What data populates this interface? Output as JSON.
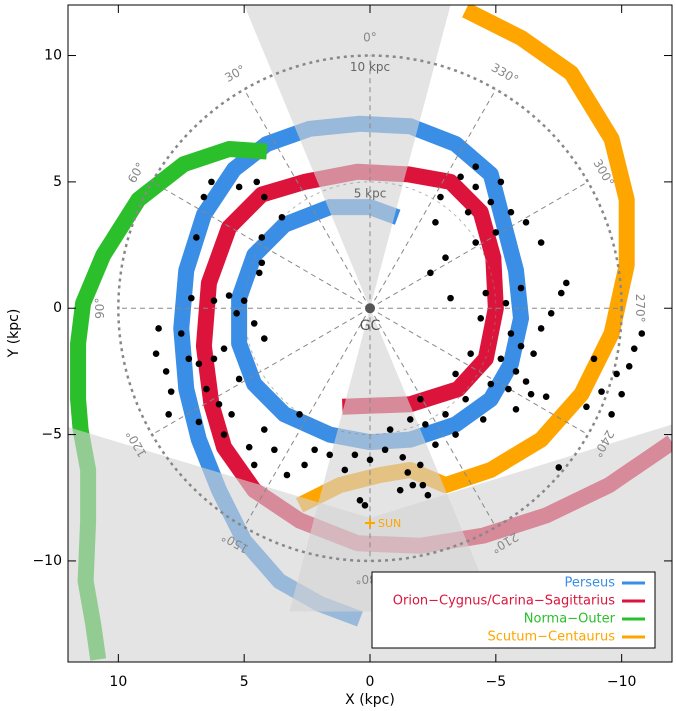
{
  "chart_data": {
    "type": "line",
    "x_label": "X (kpc)",
    "y_label": "Y (kpc)",
    "xlim": [
      12,
      -12
    ],
    "ylim": [
      -14,
      12
    ],
    "xticks": [
      10,
      5,
      0,
      {
        "value": -5,
        "label": "−5"
      },
      {
        "value": -10,
        "label": "−10"
      }
    ],
    "yticks": [
      10,
      5,
      0,
      {
        "value": -5,
        "label": "−5"
      },
      {
        "value": -10,
        "label": "−10"
      }
    ],
    "legend": "lower right",
    "series": [
      {
        "name": "Perseus",
        "color": "#3a8ee6",
        "x": [
          -1.1,
          0.0,
          1.6,
          3.4,
          4.6,
          5.2,
          5.2,
          4.6,
          3.4,
          1.6,
          0.0,
          -1.6,
          -3.4,
          -4.8,
          -5.6,
          -6.0,
          -5.8,
          -4.8,
          -3.4,
          -1.6,
          0.4,
          2.4,
          4.1,
          5.4,
          6.6,
          7.3,
          7.5,
          7.3,
          6.8,
          6.0,
          5.0,
          3.6,
          2.0,
          0.4
        ],
        "y": [
          3.6,
          4.0,
          4.0,
          3.3,
          2.1,
          0.4,
          -1.4,
          -3.0,
          -4.2,
          -5.0,
          -5.3,
          -5.2,
          -4.6,
          -3.6,
          -2.2,
          -0.4,
          1.5,
          5.3,
          6.5,
          7.2,
          7.3,
          7.1,
          6.5,
          5.5,
          3.7,
          1.5,
          -0.8,
          -3.2,
          -5.2,
          -7.2,
          -9.2,
          -10.8,
          -11.7,
          -12.3
        ]
      },
      {
        "name": "Orion−Cygnus/Carina−Sagittarius",
        "color": "#dc143c",
        "x": [
          1.1,
          -1.6,
          -3.5,
          -4.6,
          -5.0,
          -4.9,
          -4.4,
          -3.2,
          -1.5,
          0.5,
          2.6,
          4.3,
          5.6,
          6.4,
          6.6,
          6.3,
          5.8,
          4.6,
          2.8,
          0.5,
          -2.0,
          -4.5,
          -7.0,
          -9.5,
          -12.0
        ],
        "y": [
          -3.9,
          -3.8,
          -3.2,
          -2.0,
          0.0,
          2.0,
          3.8,
          5.0,
          5.3,
          5.4,
          5.0,
          4.5,
          3.2,
          1.0,
          -1.5,
          -3.8,
          -5.5,
          -7.2,
          -8.4,
          -9.3,
          -9.4,
          -9.0,
          -8.2,
          -7.0,
          -5.3
        ]
      },
      {
        "name": "Norma−Outer",
        "color": "#2bbf2b",
        "x": [
          4.1,
          5.6,
          7.4,
          9.2,
          10.6,
          11.4,
          11.6,
          11.6,
          11.5,
          11.2,
          11.2,
          11.3,
          11.0,
          10.8
        ],
        "y": [
          6.2,
          6.3,
          5.7,
          4.3,
          2.1,
          0.2,
          -1.4,
          -3.6,
          -4.8,
          -6.4,
          -8.4,
          -10.8,
          -12.5,
          -13.9
        ]
      },
      {
        "name": "Scutum−Centaurus",
        "color": "#ffa500",
        "x": [
          2.8,
          1.2,
          -0.4,
          -1.6,
          -3.0,
          -4.8,
          -6.8,
          -8.4,
          -9.6,
          -10.2,
          -10.2,
          -9.6,
          -8.0,
          -6.0,
          -3.8
        ],
        "y": [
          -7.8,
          -7.0,
          -6.6,
          -6.4,
          -7.0,
          -6.4,
          -5.2,
          -3.4,
          -1.0,
          1.7,
          4.3,
          6.7,
          9.3,
          10.7,
          11.8
        ]
      }
    ],
    "scatter": {
      "color": "#000000",
      "x": [
        4.5,
        5.2,
        4.2,
        3.5,
        4.3,
        4.3,
        4.4,
        5.0,
        5.6,
        6.2,
        7.1,
        5.3,
        4.6,
        4.2,
        5.8,
        6.2,
        6.8,
        7.2,
        8.4,
        8.5,
        8.1,
        7.9,
        8.0,
        6.5,
        6.0,
        5.5,
        5.8,
        4.8,
        4.6,
        4.2,
        3.8,
        6.9,
        6.6,
        6.3,
        2.8,
        2.2,
        2.6,
        1.6,
        3.3,
        5.2,
        7.5,
        6.8,
        0.6,
        0.0,
        -0.6,
        -1.3,
        -1.5,
        -1.7,
        -2.0,
        -2.3,
        -2.1,
        -1.2,
        -0.8,
        -1.6,
        0.4,
        0.2,
        -2.6,
        -3.4,
        -3.0,
        1.0,
        -4.2,
        -3.6,
        -4.8,
        -5.0,
        -4.2,
        -2.6,
        -3.0,
        -2.4,
        -4.6,
        -5.4,
        -5.6,
        -6.0,
        -5.2,
        -5.8,
        -6.2,
        -5.5,
        -4.8,
        -6.4,
        -5.8,
        -6.8,
        -7.2,
        -7.6,
        -7.8,
        -6.8,
        -6.2,
        -5.6,
        -4.0,
        -4.5,
        -3.8,
        -6.5,
        -6.0,
        -4.4,
        -3.2,
        -2.8,
        -4.2,
        -3.4,
        -5.2,
        -3.9,
        -8.6,
        -9.2,
        -9.6,
        -10.0,
        -10.5,
        -10.3,
        -9.8,
        -8.9,
        -10.8,
        -7.5,
        -7.0,
        -2.0,
        -2.2
      ],
      "y": [
        5.0,
        4.8,
        4.4,
        3.6,
        2.8,
        1.8,
        1.4,
        0.3,
        0.5,
        0.3,
        0.4,
        -0.2,
        -0.6,
        -1.2,
        -1.6,
        -2.0,
        -2.2,
        -2.0,
        -0.8,
        -1.8,
        -2.5,
        -3.3,
        -4.2,
        -3.2,
        -3.8,
        -4.2,
        -5.0,
        -5.5,
        -6.2,
        -4.8,
        -5.6,
        2.8,
        4.4,
        5.0,
        -4.2,
        -5.6,
        -6.2,
        -5.8,
        -6.6,
        -2.8,
        -1.0,
        -4.5,
        -5.8,
        -6.0,
        -5.6,
        -5.9,
        -6.5,
        -7.0,
        -6.2,
        -7.4,
        -7.0,
        -7.2,
        -4.8,
        -4.4,
        -7.6,
        -7.8,
        -5.4,
        -5.0,
        -4.2,
        -6.4,
        4.8,
        5.2,
        4.2,
        3.0,
        2.6,
        3.4,
        2.0,
        1.4,
        0.6,
        0.2,
        -1.0,
        -1.5,
        -2.0,
        -2.5,
        -2.9,
        -3.2,
        -3.0,
        -3.4,
        -4.0,
        -0.8,
        -0.2,
        0.6,
        1.0,
        2.6,
        3.4,
        3.8,
        -1.8,
        -4.4,
        -3.6,
        -1.8,
        0.8,
        -0.4,
        0.4,
        4.4,
        5.6,
        -2.6,
        5.0,
        3.8,
        -3.9,
        -3.3,
        -4.2,
        -3.4,
        -1.6,
        -2.3,
        -2.6,
        -2.0,
        -1.0,
        -6.3,
        -3.5,
        -3.6,
        -4.6
      ]
    },
    "shaded_regions": [
      [
        [
          5,
          12
        ],
        [
          -3.2,
          12
        ],
        [
          0,
          0
        ]
      ],
      [
        [
          0,
          0
        ],
        [
          3.2,
          -12
        ],
        [
          -5,
          -12
        ]
      ],
      [
        [
          12,
          -4.7
        ],
        [
          0,
          -8.3
        ],
        [
          -12,
          -4.6
        ],
        [
          -12,
          -14
        ],
        [
          12,
          -14
        ]
      ]
    ],
    "angle_ticks": [
      {
        "value": 0,
        "label": "0°"
      },
      {
        "value": 30,
        "label": "30°"
      },
      {
        "value": 60,
        "label": "60°"
      },
      {
        "value": 90,
        "label": "90°"
      },
      {
        "value": 120,
        "label": "120°"
      },
      {
        "value": 150,
        "label": "150°"
      },
      {
        "value": 180,
        "label": "180°"
      },
      {
        "value": 210,
        "label": "210°"
      },
      {
        "value": 240,
        "label": "240°"
      },
      {
        "value": 270,
        "label": "270°"
      },
      {
        "value": 300,
        "label": "300°"
      },
      {
        "value": 330,
        "label": "330°"
      }
    ],
    "ring_ticks": [
      {
        "value": 5,
        "label": "5 kpc"
      },
      {
        "value": 10,
        "label": "10 kpc"
      }
    ],
    "annotations": [
      {
        "text": "GC",
        "x": 0,
        "y": 0,
        "color": "#555555"
      },
      {
        "text": "SUN",
        "x": 0,
        "y": -8.5,
        "color": "#ffa500"
      }
    ]
  }
}
